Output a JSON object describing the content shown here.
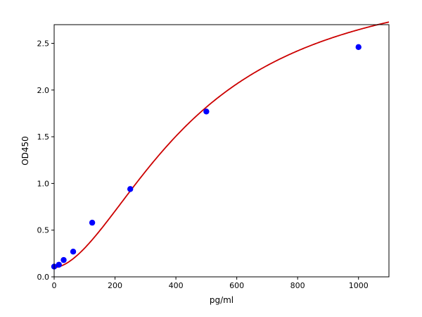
{
  "chart_data": {
    "type": "scatter",
    "title": "",
    "xlabel": "pg/ml",
    "ylabel": "OD450",
    "xlim": [
      0,
      1100
    ],
    "ylim": [
      0,
      2.7
    ],
    "xticks": [
      0,
      200,
      400,
      600,
      800,
      1000
    ],
    "xtick_labels": [
      "0",
      "200",
      "400",
      "600",
      "800",
      "1000"
    ],
    "yticks": [
      0.0,
      0.5,
      1.0,
      1.5,
      2.0,
      2.5
    ],
    "ytick_labels": [
      "0.0",
      "0.5",
      "1.0",
      "1.5",
      "2.0",
      "2.5"
    ],
    "grid": false,
    "legend": "none",
    "series": [
      {
        "kind": "scatter",
        "color": "#0000ff",
        "points": [
          {
            "x": 0,
            "y": 0.11
          },
          {
            "x": 15.6,
            "y": 0.13
          },
          {
            "x": 31.25,
            "y": 0.18
          },
          {
            "x": 62.5,
            "y": 0.27
          },
          {
            "x": 125,
            "y": 0.58
          },
          {
            "x": 250,
            "y": 0.94
          },
          {
            "x": 500,
            "y": 1.77
          },
          {
            "x": 1000,
            "y": 2.46
          }
        ]
      },
      {
        "kind": "fit-line",
        "color": "#cc0000",
        "model": "4PL",
        "params": {
          "A": 0.1,
          "B": 1.75,
          "C": 460,
          "D": 3.3
        },
        "x_range": [
          0,
          1100
        ]
      }
    ]
  }
}
